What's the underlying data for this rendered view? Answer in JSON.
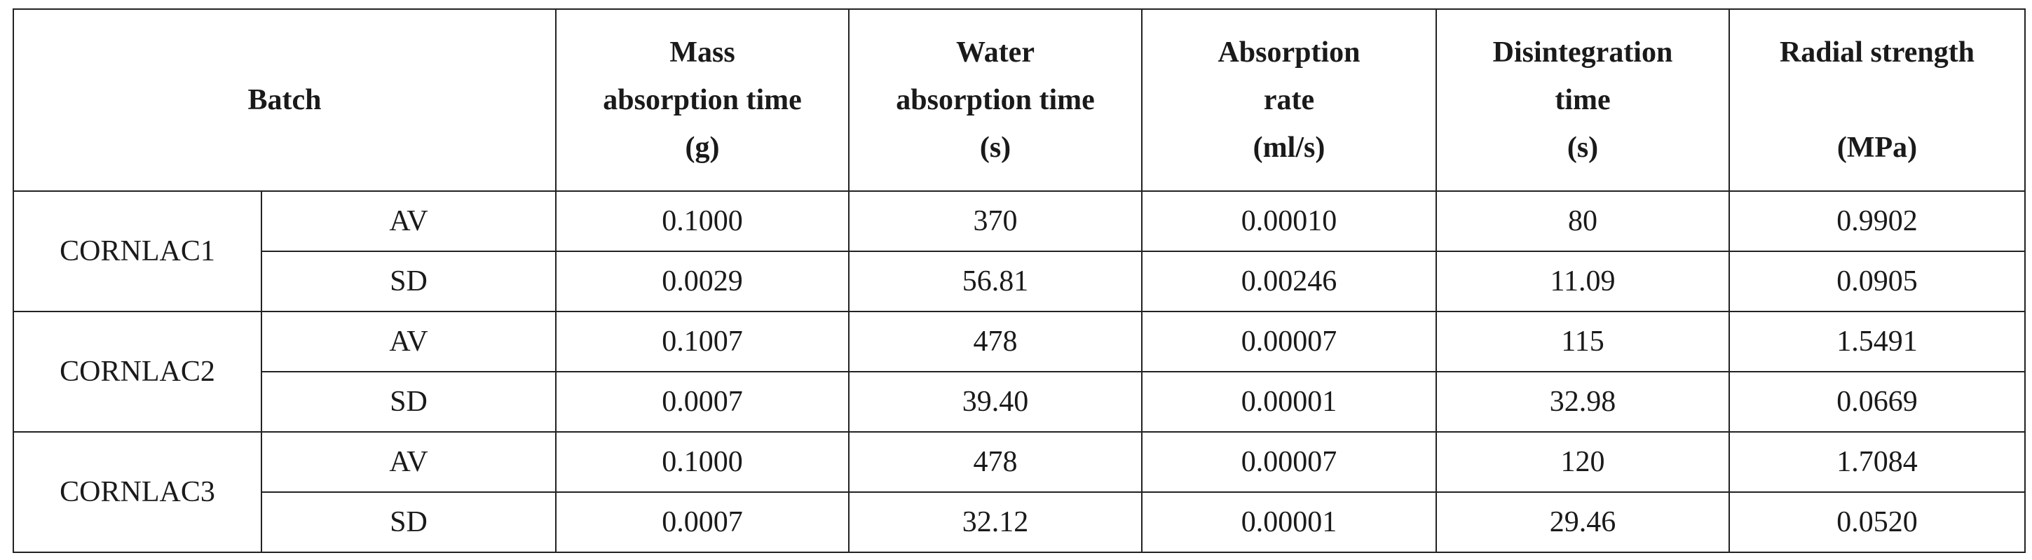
{
  "table": {
    "headers": {
      "batch": "Batch",
      "columns": [
        {
          "lines": [
            "Mass",
            "absorption time",
            "(g)"
          ]
        },
        {
          "lines": [
            "Water",
            "absorption time",
            "(s)"
          ]
        },
        {
          "lines": [
            "Absorption",
            "rate",
            "(ml/s)"
          ]
        },
        {
          "lines": [
            "Disintegration",
            "time",
            "(s)"
          ]
        },
        {
          "lines": [
            "Radial strength",
            "",
            "(MPa)"
          ]
        }
      ]
    },
    "batches": [
      {
        "name": "CORNLAC1",
        "rows": [
          {
            "stat": "AV",
            "values": [
              "0.1000",
              "370",
              "0.00010",
              "80",
              "0.9902"
            ]
          },
          {
            "stat": "SD",
            "values": [
              "0.0029",
              "56.81",
              "0.00246",
              "11.09",
              "0.0905"
            ]
          }
        ]
      },
      {
        "name": "CORNLAC2",
        "rows": [
          {
            "stat": "AV",
            "values": [
              "0.1007",
              "478",
              "0.00007",
              "115",
              "1.5491"
            ]
          },
          {
            "stat": "SD",
            "values": [
              "0.0007",
              "39.40",
              "0.00001",
              "32.98",
              "0.0669"
            ]
          }
        ]
      },
      {
        "name": "CORNLAC3",
        "rows": [
          {
            "stat": "AV",
            "values": [
              "0.1000",
              "478",
              "0.00007",
              "120",
              "1.7084"
            ]
          },
          {
            "stat": "SD",
            "values": [
              "0.0007",
              "32.12",
              "0.00001",
              "29.46",
              "0.0520"
            ]
          }
        ]
      }
    ]
  }
}
